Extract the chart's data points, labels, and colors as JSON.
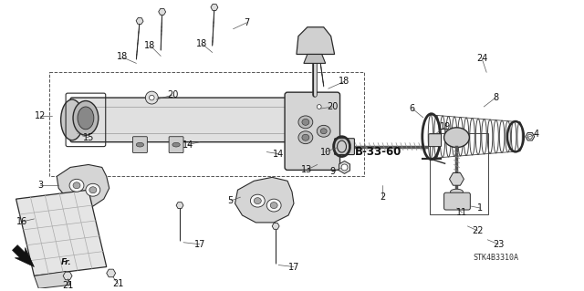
{
  "bg_color": "#ffffff",
  "fig_width": 6.4,
  "fig_height": 3.19,
  "dpi": 100,
  "line_color": "#2a2a2a",
  "stk_label": "STK4B3310A",
  "b3360": "B-33-60"
}
